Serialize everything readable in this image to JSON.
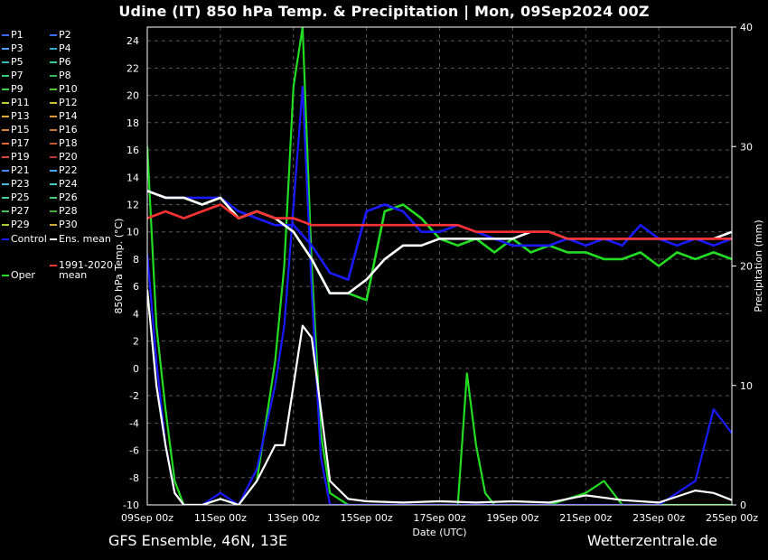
{
  "title": "Udine  (IT)  850 hPa Temp. & Precipitation | Mon, 09Sep2024 00Z",
  "footer": {
    "left": "GFS Ensemble, 46N, 13E",
    "right": "Wetterzentrale.de"
  },
  "colors": {
    "oper": "#22dd22",
    "control": "#1a1aff",
    "ens_mean": "#ffffff",
    "climate": "#ff3333",
    "grid": "#555555",
    "background": "#000000"
  },
  "legend": [
    {
      "label": "P1",
      "color": "#3a6cff"
    },
    {
      "label": "P2",
      "color": "#3a6cff"
    },
    {
      "label": "P3",
      "color": "#4aa0ff"
    },
    {
      "label": "P4",
      "color": "#33aacc"
    },
    {
      "label": "P5",
      "color": "#33bbbb"
    },
    {
      "label": "P6",
      "color": "#33cc99"
    },
    {
      "label": "P7",
      "color": "#33cc77"
    },
    {
      "label": "P8",
      "color": "#33bb55"
    },
    {
      "label": "P9",
      "color": "#44cc44"
    },
    {
      "label": "P10",
      "color": "#55cc33"
    },
    {
      "label": "P11",
      "color": "#bbcc33"
    },
    {
      "label": "P12",
      "color": "#ccbb33"
    },
    {
      "label": "P13",
      "color": "#ddaa33"
    },
    {
      "label": "P14",
      "color": "#dd9933"
    },
    {
      "label": "P15",
      "color": "#dd8833"
    },
    {
      "label": "P16",
      "color": "#cc7733"
    },
    {
      "label": "P17",
      "color": "#dd6633"
    },
    {
      "label": "P18",
      "color": "#cc5533"
    },
    {
      "label": "P19",
      "color": "#dd4433"
    },
    {
      "label": "P20",
      "color": "#bb3333"
    },
    {
      "label": "P21",
      "color": "#4488ff"
    },
    {
      "label": "P22",
      "color": "#44aaff"
    },
    {
      "label": "P23",
      "color": "#44bbdd"
    },
    {
      "label": "P24",
      "color": "#44ccbb"
    },
    {
      "label": "P25",
      "color": "#44cc99"
    },
    {
      "label": "P26",
      "color": "#44cc77"
    },
    {
      "label": "P27",
      "color": "#44bb55"
    },
    {
      "label": "P28",
      "color": "#44aa44"
    },
    {
      "label": "P29",
      "color": "#aacc33"
    },
    {
      "label": "P30",
      "color": "#ccaa33"
    },
    {
      "label": "Control",
      "color": "#1a1aff"
    },
    {
      "label": "Ens. mean",
      "color": "#ffffff"
    },
    {
      "label": "Oper",
      "color": "#22dd22"
    },
    {
      "label": "1991-2020 mean",
      "color": "#ff3333"
    }
  ],
  "chart_data": {
    "type": "line",
    "title": "Udine  (IT)  850 hPa Temp. & Precipitation | Mon, 09Sep2024 00Z",
    "xlabel": "Date (UTC)",
    "ylabel": "850 hPa Temp. (°C)",
    "y2label": "Precipitation (mm)",
    "xlim": [
      0,
      16
    ],
    "ylim": [
      -10,
      25
    ],
    "y2lim": [
      0,
      40
    ],
    "x_ticks": [
      {
        "x": 0,
        "label": "09Sep 00z"
      },
      {
        "x": 2,
        "label": "11Sep 00z"
      },
      {
        "x": 4,
        "label": "13Sep 00z"
      },
      {
        "x": 6,
        "label": "15Sep 00z"
      },
      {
        "x": 8,
        "label": "17Sep 00z"
      },
      {
        "x": 10,
        "label": "19Sep 00z"
      },
      {
        "x": 12,
        "label": "21Sep 00z"
      },
      {
        "x": 14,
        "label": "23Sep 00z"
      },
      {
        "x": 16,
        "label": "25Sep 00z"
      }
    ],
    "y_ticks": [
      -10,
      -8,
      -6,
      -4,
      -2,
      0,
      2,
      4,
      6,
      8,
      10,
      12,
      14,
      16,
      18,
      20,
      22,
      24
    ],
    "y2_ticks": [
      0,
      10,
      20,
      30,
      40
    ],
    "grid": true,
    "legend_position": "left-outside",
    "series": [
      {
        "name": "Oper",
        "kind": "temperature",
        "color": "#22dd22",
        "x": [
          0,
          0.5,
          1,
          1.5,
          2,
          2.5,
          3,
          3.5,
          4,
          4.5,
          5,
          5.5,
          6,
          6.5,
          7,
          7.5,
          8,
          8.5,
          9,
          9.5,
          10,
          10.5,
          11,
          11.5,
          12,
          12.5,
          13,
          13.5,
          14,
          14.5,
          15,
          15.5,
          16
        ],
        "y": [
          13.0,
          12.5,
          12.5,
          12.0,
          12.5,
          11.0,
          11.5,
          11.0,
          10.0,
          8.0,
          5.5,
          5.5,
          5.0,
          11.5,
          12.0,
          11.0,
          9.5,
          9.0,
          9.5,
          8.5,
          9.5,
          8.5,
          9.0,
          8.5,
          8.5,
          8.0,
          8.0,
          8.5,
          7.5,
          8.5,
          8.0,
          8.5,
          8.0
        ]
      },
      {
        "name": "Control",
        "kind": "temperature",
        "color": "#1a1aff",
        "x": [
          0,
          0.5,
          1,
          1.5,
          2,
          2.5,
          3,
          3.5,
          4,
          4.5,
          5,
          5.5,
          6,
          6.5,
          7,
          7.5,
          8,
          8.5,
          9,
          9.5,
          10,
          10.5,
          11,
          11.5,
          12,
          12.5,
          13,
          13.5,
          14,
          14.5,
          15,
          15.5,
          16
        ],
        "y": [
          13.0,
          12.5,
          12.5,
          12.5,
          12.5,
          11.5,
          11.0,
          10.5,
          10.5,
          9.0,
          7.0,
          6.5,
          11.5,
          12.0,
          11.5,
          10.0,
          10.0,
          10.5,
          10.0,
          9.5,
          9.0,
          9.0,
          9.0,
          9.5,
          9.0,
          9.5,
          9.0,
          10.5,
          9.5,
          9.0,
          9.5,
          9.0,
          9.5
        ]
      },
      {
        "name": "Ens. mean",
        "kind": "temperature",
        "color": "#ffffff",
        "x": [
          0,
          0.5,
          1,
          1.5,
          2,
          2.5,
          3,
          3.5,
          4,
          4.5,
          5,
          5.5,
          6,
          6.5,
          7,
          7.5,
          8,
          8.5,
          9,
          9.5,
          10,
          10.5,
          11,
          11.5,
          12,
          12.5,
          13,
          13.5,
          14,
          14.5,
          15,
          15.5,
          16
        ],
        "y": [
          13.0,
          12.5,
          12.5,
          12.0,
          12.5,
          11.0,
          11.5,
          11.0,
          10.0,
          8.0,
          5.5,
          5.5,
          6.5,
          8.0,
          9.0,
          9.0,
          9.5,
          9.5,
          9.5,
          9.5,
          9.5,
          10.0,
          10.0,
          9.5,
          9.5,
          9.5,
          9.5,
          9.5,
          9.5,
          9.5,
          9.5,
          9.5,
          10.0
        ]
      },
      {
        "name": "1991-2020 mean",
        "kind": "temperature",
        "color": "#ff3333",
        "x": [
          0,
          0.5,
          1,
          1.5,
          2,
          2.5,
          3,
          3.5,
          4,
          4.5,
          5,
          5.5,
          6,
          6.5,
          7,
          7.5,
          8,
          8.5,
          9,
          9.5,
          10,
          10.5,
          11,
          11.5,
          12,
          12.5,
          13,
          13.5,
          14,
          14.5,
          15,
          15.5,
          16
        ],
        "y": [
          11.0,
          11.5,
          11.0,
          11.5,
          12.0,
          11.0,
          11.5,
          11.0,
          11.0,
          10.5,
          10.5,
          10.5,
          10.5,
          10.5,
          10.5,
          10.5,
          10.5,
          10.5,
          10.0,
          10.0,
          10.0,
          10.0,
          10.0,
          9.5,
          9.5,
          9.5,
          9.5,
          9.5,
          9.5,
          9.5,
          9.5,
          9.5,
          9.5
        ]
      },
      {
        "name": "Oper",
        "kind": "precipitation",
        "color": "#22dd22",
        "x": [
          0,
          0.25,
          0.5,
          0.75,
          1,
          1.5,
          2,
          2.5,
          3,
          3.5,
          3.75,
          4,
          4.25,
          4.5,
          4.75,
          5,
          5.5,
          6,
          7,
          8,
          8.5,
          8.75,
          9,
          9.25,
          9.5,
          10,
          11,
          12,
          12.5,
          13,
          14,
          15,
          16
        ],
        "y": [
          30,
          15,
          8,
          2,
          0,
          0,
          0.5,
          0,
          2,
          12,
          20,
          35,
          40,
          20,
          6,
          1,
          0,
          0,
          0,
          0,
          0,
          11,
          5,
          1,
          0,
          0,
          0,
          1,
          2,
          0,
          0,
          0,
          0
        ]
      },
      {
        "name": "Control",
        "kind": "precipitation",
        "color": "#1a1aff",
        "x": [
          0,
          0.25,
          0.5,
          0.75,
          1,
          1.5,
          2,
          2.5,
          3,
          3.5,
          3.75,
          4,
          4.25,
          4.5,
          4.75,
          5,
          5.5,
          6,
          7,
          8,
          9,
          10,
          11,
          12,
          13,
          14,
          14.5,
          15,
          15.5,
          16
        ],
        "y": [
          21,
          12,
          5,
          1,
          0,
          0,
          1,
          0,
          3,
          10,
          15,
          25,
          35,
          18,
          4,
          0,
          0,
          0,
          0,
          0,
          0,
          0,
          0,
          0,
          0,
          0,
          1,
          2,
          8,
          6
        ]
      },
      {
        "name": "Ens. mean",
        "kind": "precipitation",
        "color": "#ffffff",
        "x": [
          0,
          0.25,
          0.5,
          0.75,
          1,
          1.5,
          2,
          2.5,
          3,
          3.5,
          3.75,
          4,
          4.25,
          4.5,
          4.75,
          5,
          5.5,
          6,
          7,
          8,
          9,
          10,
          11,
          12,
          13,
          14,
          15,
          15.5,
          16
        ],
        "y": [
          18,
          10,
          5,
          1,
          0,
          0,
          0.5,
          0,
          2,
          5,
          5,
          10,
          15,
          14,
          8,
          2,
          0.5,
          0.3,
          0.2,
          0.3,
          0.2,
          0.3,
          0.2,
          0.8,
          0.4,
          0.2,
          1.2,
          1.0,
          0.4
        ]
      }
    ],
    "annotations": []
  }
}
